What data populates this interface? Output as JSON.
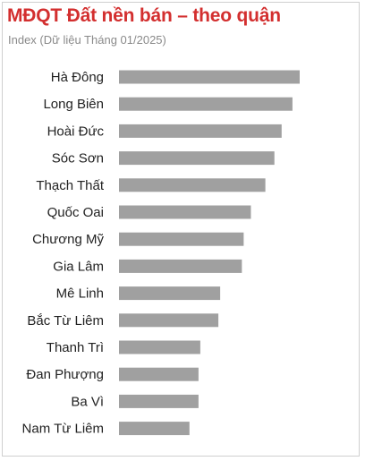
{
  "chart_data": {
    "type": "bar",
    "orientation": "horizontal",
    "title": "MĐQT Đất nền bán – theo quận",
    "subtitle": "Index (Dữ liệu Tháng 01/2025)",
    "categories": [
      "Hà Đông",
      "Long Biên",
      "Hoài Đức",
      "Sóc Sơn",
      "Thạch Thất",
      "Quốc Oai",
      "Chương Mỹ",
      "Gia Lâm",
      "Mê Linh",
      "Bắc Từ Liêm",
      "Thanh Trì",
      "Đan Phượng",
      "Ba Vì",
      "Nam Từ Liêm"
    ],
    "values": [
      100,
      96,
      90,
      86,
      81,
      73,
      69,
      68,
      56,
      55,
      45,
      44,
      44,
      39
    ],
    "xlim": [
      0,
      100
    ],
    "grid": false,
    "legend": "none",
    "bar_color": "#a0a0a0",
    "title_color": "#d32f2f"
  }
}
